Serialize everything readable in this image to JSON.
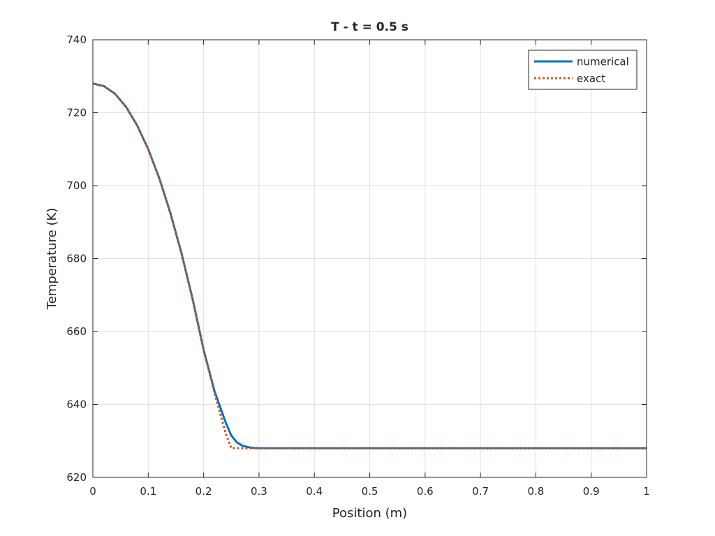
{
  "chart_data": {
    "type": "line",
    "title": "T - t = 0.5 s",
    "xlabel": "Position (m)",
    "ylabel": "Temperature (K)",
    "xlim": [
      0,
      1
    ],
    "ylim": [
      620,
      740
    ],
    "xticks": [
      "0",
      "0.1",
      "0.2",
      "0.3",
      "0.4",
      "0.5",
      "0.6",
      "0.7",
      "0.8",
      "0.9",
      "1"
    ],
    "yticks": [
      "620",
      "640",
      "660",
      "680",
      "700",
      "720",
      "740"
    ],
    "grid": true,
    "legend_position": "top-right",
    "series": [
      {
        "name": "numerical",
        "style": "solid",
        "color": "#0072bd",
        "x": [
          0,
          0.02,
          0.04,
          0.06,
          0.08,
          0.1,
          0.12,
          0.14,
          0.16,
          0.18,
          0.2,
          0.22,
          0.24,
          0.25,
          0.26,
          0.27,
          0.28,
          0.29,
          0.3,
          0.35,
          0.4,
          0.5,
          0.6,
          0.7,
          0.8,
          0.9,
          1.0
        ],
        "y": [
          728,
          727.3,
          725.2,
          721.6,
          716.5,
          710.0,
          702.0,
          692.5,
          681.5,
          669.0,
          655.0,
          643.5,
          635.0,
          631.5,
          629.6,
          628.7,
          628.3,
          628.1,
          628.0,
          628.0,
          628.0,
          628.0,
          628.0,
          628.0,
          628.0,
          628.0,
          628.0
        ]
      },
      {
        "name": "exact",
        "style": "dotted",
        "color": "#d95319",
        "x": [
          0,
          0.02,
          0.04,
          0.06,
          0.08,
          0.1,
          0.12,
          0.14,
          0.16,
          0.18,
          0.2,
          0.22,
          0.24,
          0.25,
          0.26,
          0.3,
          0.4,
          0.5,
          0.6,
          0.7,
          0.8,
          0.9,
          1.0
        ],
        "y": [
          728,
          727.3,
          725.2,
          721.6,
          716.5,
          710.0,
          702.0,
          692.5,
          681.5,
          669.0,
          655.0,
          643.0,
          632.0,
          628.0,
          628.0,
          628.0,
          628.0,
          628.0,
          628.0,
          628.0,
          628.0,
          628.0,
          628.0
        ]
      }
    ]
  }
}
